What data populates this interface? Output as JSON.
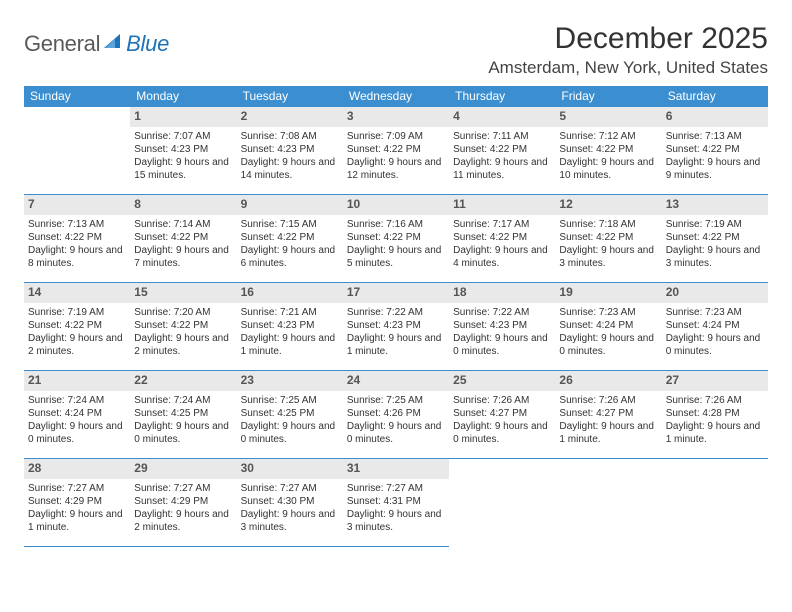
{
  "brand": {
    "name_a": "General",
    "name_b": "Blue",
    "accent": "#1e73b8",
    "gray": "#6a6a6a"
  },
  "title": "December 2025",
  "location": "Amsterdam, New York, United States",
  "colors": {
    "header_bg": "#3b8ecf",
    "header_text": "#ffffff",
    "daynum_bg": "#e9e9e9",
    "daynum_text": "#555555",
    "rule": "#3b8ecf",
    "body_text": "#333333",
    "background": "#ffffff"
  },
  "typography": {
    "title_fontsize": 30,
    "location_fontsize": 17,
    "weekday_fontsize": 12,
    "daynum_fontsize": 12,
    "body_fontsize": 10
  },
  "weekdays": [
    "Sunday",
    "Monday",
    "Tuesday",
    "Wednesday",
    "Thursday",
    "Friday",
    "Saturday"
  ],
  "layout": {
    "first_weekday_offset": 1,
    "rows": 5,
    "cols": 7
  },
  "days": [
    {
      "n": 1,
      "sunrise": "7:07 AM",
      "sunset": "4:23 PM",
      "daylight": "9 hours and 15 minutes."
    },
    {
      "n": 2,
      "sunrise": "7:08 AM",
      "sunset": "4:23 PM",
      "daylight": "9 hours and 14 minutes."
    },
    {
      "n": 3,
      "sunrise": "7:09 AM",
      "sunset": "4:22 PM",
      "daylight": "9 hours and 12 minutes."
    },
    {
      "n": 4,
      "sunrise": "7:11 AM",
      "sunset": "4:22 PM",
      "daylight": "9 hours and 11 minutes."
    },
    {
      "n": 5,
      "sunrise": "7:12 AM",
      "sunset": "4:22 PM",
      "daylight": "9 hours and 10 minutes."
    },
    {
      "n": 6,
      "sunrise": "7:13 AM",
      "sunset": "4:22 PM",
      "daylight": "9 hours and 9 minutes."
    },
    {
      "n": 7,
      "sunrise": "7:13 AM",
      "sunset": "4:22 PM",
      "daylight": "9 hours and 8 minutes."
    },
    {
      "n": 8,
      "sunrise": "7:14 AM",
      "sunset": "4:22 PM",
      "daylight": "9 hours and 7 minutes."
    },
    {
      "n": 9,
      "sunrise": "7:15 AM",
      "sunset": "4:22 PM",
      "daylight": "9 hours and 6 minutes."
    },
    {
      "n": 10,
      "sunrise": "7:16 AM",
      "sunset": "4:22 PM",
      "daylight": "9 hours and 5 minutes."
    },
    {
      "n": 11,
      "sunrise": "7:17 AM",
      "sunset": "4:22 PM",
      "daylight": "9 hours and 4 minutes."
    },
    {
      "n": 12,
      "sunrise": "7:18 AM",
      "sunset": "4:22 PM",
      "daylight": "9 hours and 3 minutes."
    },
    {
      "n": 13,
      "sunrise": "7:19 AM",
      "sunset": "4:22 PM",
      "daylight": "9 hours and 3 minutes."
    },
    {
      "n": 14,
      "sunrise": "7:19 AM",
      "sunset": "4:22 PM",
      "daylight": "9 hours and 2 minutes."
    },
    {
      "n": 15,
      "sunrise": "7:20 AM",
      "sunset": "4:22 PM",
      "daylight": "9 hours and 2 minutes."
    },
    {
      "n": 16,
      "sunrise": "7:21 AM",
      "sunset": "4:23 PM",
      "daylight": "9 hours and 1 minute."
    },
    {
      "n": 17,
      "sunrise": "7:22 AM",
      "sunset": "4:23 PM",
      "daylight": "9 hours and 1 minute."
    },
    {
      "n": 18,
      "sunrise": "7:22 AM",
      "sunset": "4:23 PM",
      "daylight": "9 hours and 0 minutes."
    },
    {
      "n": 19,
      "sunrise": "7:23 AM",
      "sunset": "4:24 PM",
      "daylight": "9 hours and 0 minutes."
    },
    {
      "n": 20,
      "sunrise": "7:23 AM",
      "sunset": "4:24 PM",
      "daylight": "9 hours and 0 minutes."
    },
    {
      "n": 21,
      "sunrise": "7:24 AM",
      "sunset": "4:24 PM",
      "daylight": "9 hours and 0 minutes."
    },
    {
      "n": 22,
      "sunrise": "7:24 AM",
      "sunset": "4:25 PM",
      "daylight": "9 hours and 0 minutes."
    },
    {
      "n": 23,
      "sunrise": "7:25 AM",
      "sunset": "4:25 PM",
      "daylight": "9 hours and 0 minutes."
    },
    {
      "n": 24,
      "sunrise": "7:25 AM",
      "sunset": "4:26 PM",
      "daylight": "9 hours and 0 minutes."
    },
    {
      "n": 25,
      "sunrise": "7:26 AM",
      "sunset": "4:27 PM",
      "daylight": "9 hours and 0 minutes."
    },
    {
      "n": 26,
      "sunrise": "7:26 AM",
      "sunset": "4:27 PM",
      "daylight": "9 hours and 1 minute."
    },
    {
      "n": 27,
      "sunrise": "7:26 AM",
      "sunset": "4:28 PM",
      "daylight": "9 hours and 1 minute."
    },
    {
      "n": 28,
      "sunrise": "7:27 AM",
      "sunset": "4:29 PM",
      "daylight": "9 hours and 1 minute."
    },
    {
      "n": 29,
      "sunrise": "7:27 AM",
      "sunset": "4:29 PM",
      "daylight": "9 hours and 2 minutes."
    },
    {
      "n": 30,
      "sunrise": "7:27 AM",
      "sunset": "4:30 PM",
      "daylight": "9 hours and 3 minutes."
    },
    {
      "n": 31,
      "sunrise": "7:27 AM",
      "sunset": "4:31 PM",
      "daylight": "9 hours and 3 minutes."
    }
  ],
  "labels": {
    "sunrise": "Sunrise:",
    "sunset": "Sunset:",
    "daylight": "Daylight:"
  }
}
